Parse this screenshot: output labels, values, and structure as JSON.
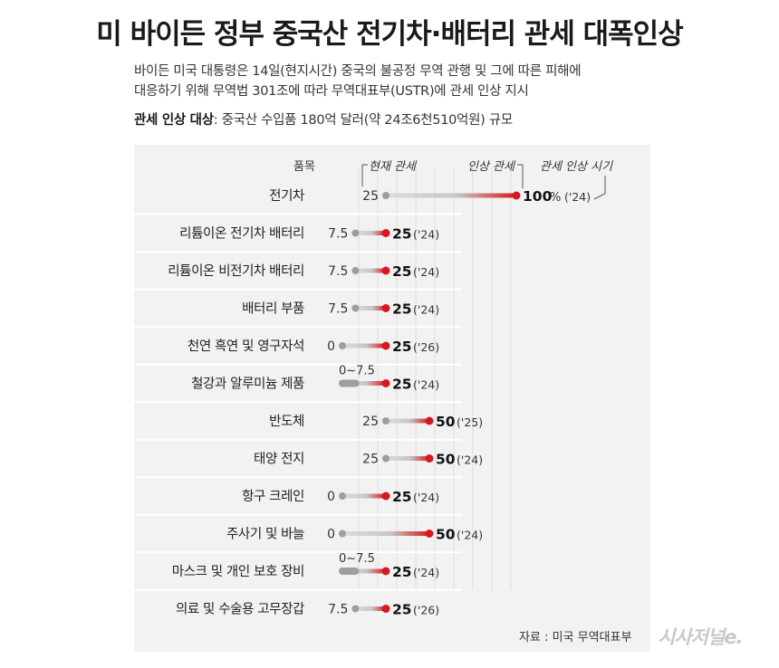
{
  "title": "미 바이든 정부 중국산 전기차·배터리 관세 대폭인상",
  "description_lines": [
    "바이든 미국 대통령은 14일(현지시간) 중국의 불공정 무역 관행 및 그에 따른 피해에",
    "대응하기 위해 무역법 301조에 따라 무역대표부(USTR)에 관세 인상 지시"
  ],
  "target_label": "관세 인상 대상",
  "target_value": ": 중국산 수입품 180억 달러(약 24조6천510억원) 규모",
  "source": "자료 : 미국 무역대표부",
  "logo": "시사저널e.",
  "colors": {
    "current": "#9e9e9e",
    "raised": "#d7191f",
    "panel": "#f2f2f2"
  },
  "chart_data": {
    "type": "dumbbell",
    "header": {
      "item": "품목",
      "current": "현재 관세",
      "raised": "인상 관세",
      "timing": "관세 인상 시기"
    },
    "rows": [
      {
        "item": "전기차",
        "current": 25,
        "current_label": "25",
        "raised": 100,
        "raised_label": "100",
        "unit": "%",
        "year": "('24)"
      },
      {
        "item": "리튬이온 전기차 배터리",
        "current": 7.5,
        "current_label": "7.5",
        "raised": 25,
        "raised_label": "25",
        "year": "('24)"
      },
      {
        "item": "리튬이온 비전기차 배터리",
        "current": 7.5,
        "current_label": "7.5",
        "raised": 25,
        "raised_label": "25",
        "year": "('24)"
      },
      {
        "item": "배터리 부품",
        "current": 7.5,
        "current_label": "7.5",
        "raised": 25,
        "raised_label": "25",
        "year": "('24)"
      },
      {
        "item": "천연 흑연 및 영구자석",
        "current": 0,
        "current_label": "0",
        "raised": 25,
        "raised_label": "25",
        "year": "('26)"
      },
      {
        "item": "철강과 알루미늄 제품",
        "current": [
          0,
          7.5
        ],
        "current_label": "0~7.5",
        "raised": 25,
        "raised_label": "25",
        "year": "('24)"
      },
      {
        "item": "반도체",
        "current": 25,
        "current_label": "25",
        "raised": 50,
        "raised_label": "50",
        "year": "('25)"
      },
      {
        "item": "태양 전지",
        "current": 25,
        "current_label": "25",
        "raised": 50,
        "raised_label": "50",
        "year": "('24)"
      },
      {
        "item": "항구 크레인",
        "current": 0,
        "current_label": "0",
        "raised": 25,
        "raised_label": "25",
        "year": "('24)"
      },
      {
        "item": "주사기 및 바늘",
        "current": 0,
        "current_label": "0",
        "raised": 50,
        "raised_label": "50",
        "year": "('24)"
      },
      {
        "item": "마스크 및 개인 보호 장비",
        "current": [
          0,
          7.5
        ],
        "current_label": "0~7.5",
        "raised": 25,
        "raised_label": "25",
        "year": "('24)"
      },
      {
        "item": "의료 및 수술용 고무장갑",
        "current": 7.5,
        "current_label": "7.5",
        "raised": 25,
        "raised_label": "25",
        "year": "('26)"
      }
    ]
  }
}
